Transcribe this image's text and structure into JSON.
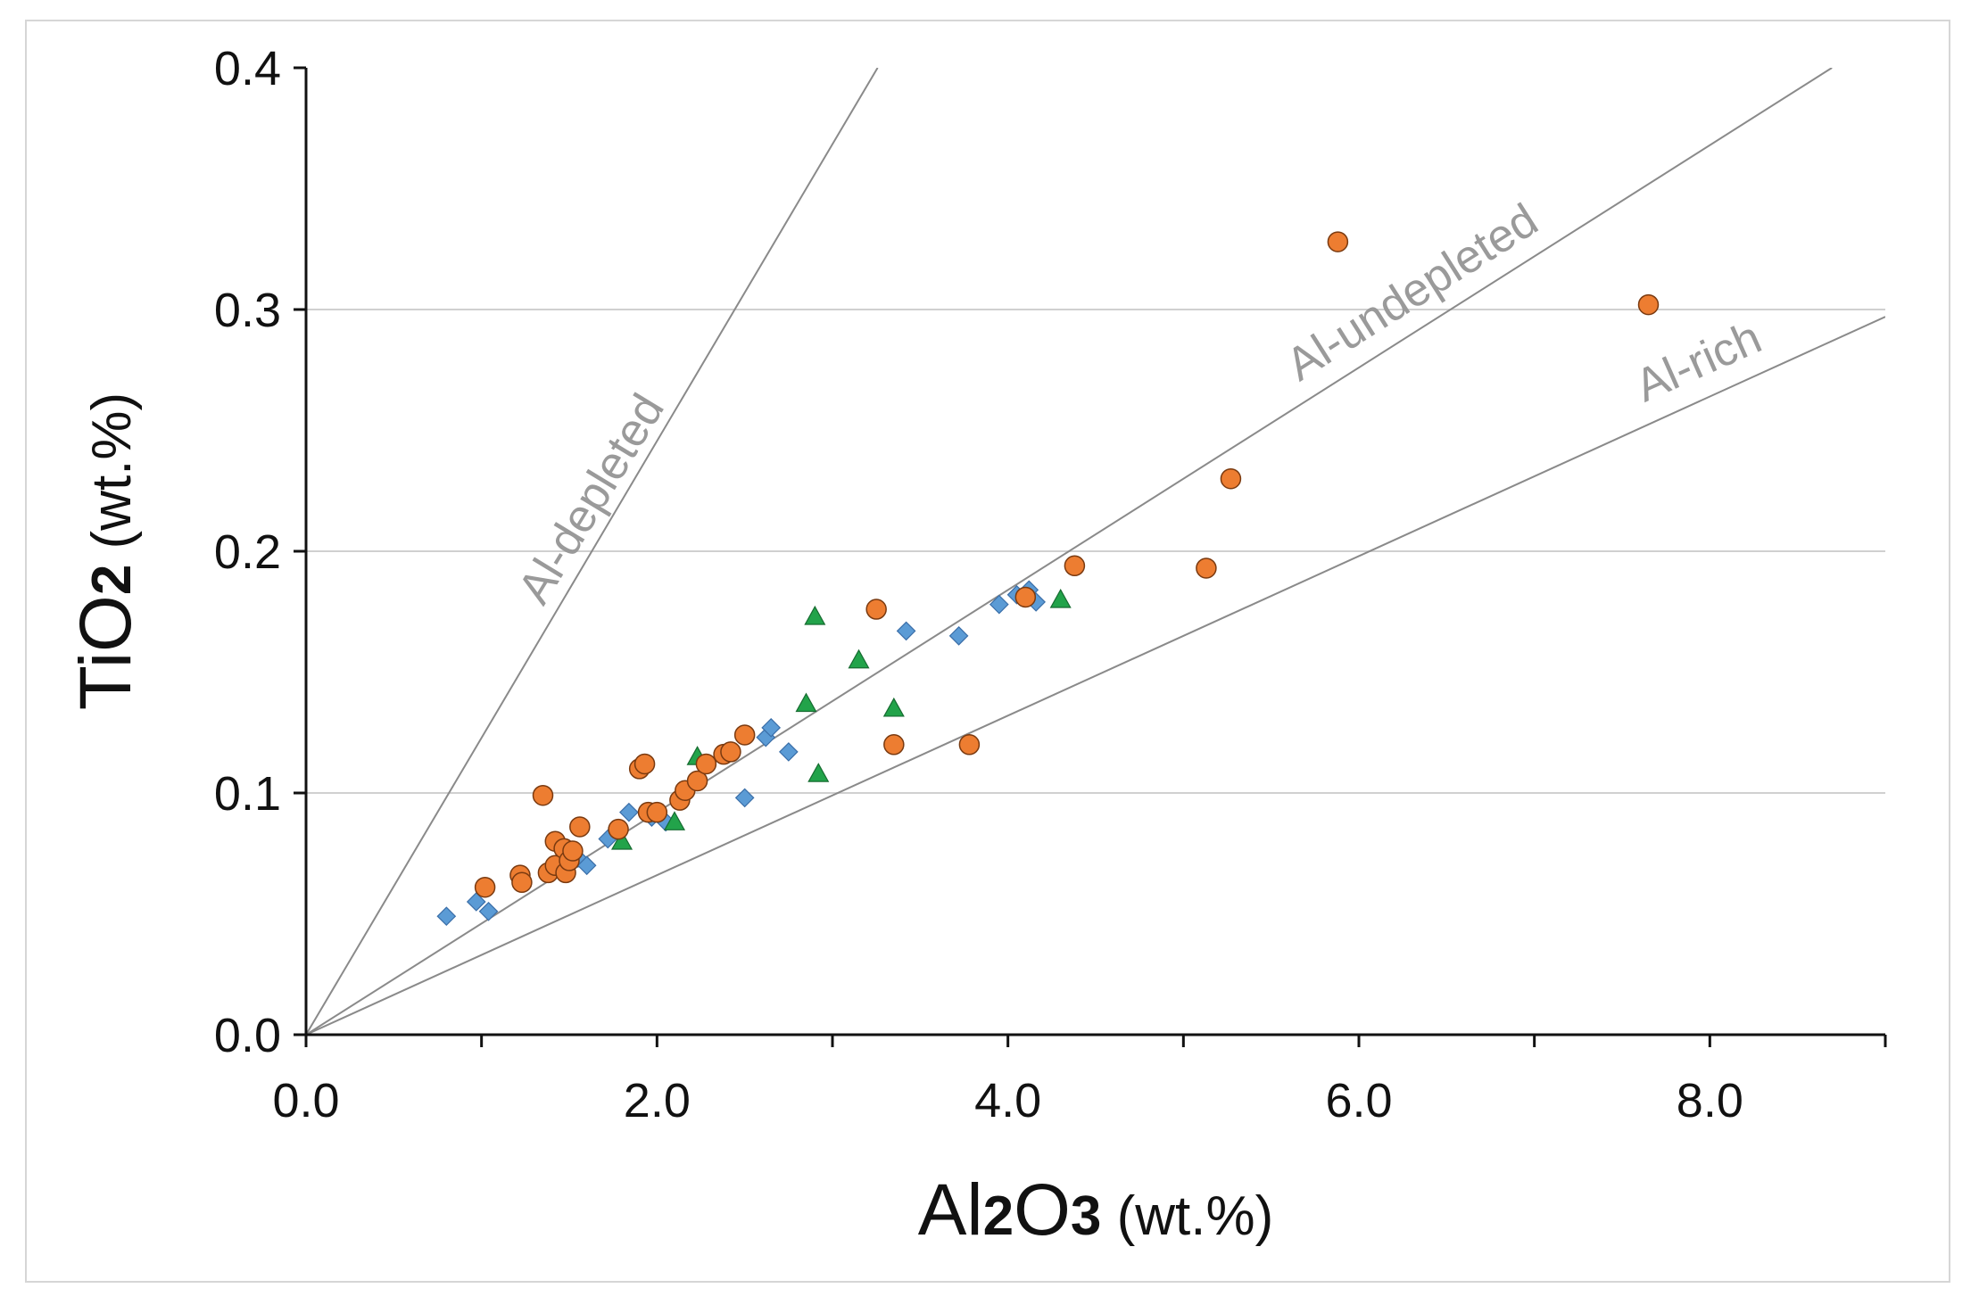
{
  "chart_data": {
    "type": "scatter",
    "title": "",
    "xlabel": {
      "base": "Al",
      "sub1": "2",
      "mid": "O",
      "sub2": "3",
      "unit": " (wt.%)"
    },
    "ylabel": {
      "base": "TiO",
      "sub": "2",
      "unit": " (wt.%)"
    },
    "xlim": [
      0,
      9
    ],
    "ylim": [
      0,
      0.4
    ],
    "x_ticks": [
      0,
      1,
      2,
      3,
      4,
      5,
      6,
      7,
      8,
      9
    ],
    "x_tick_labels": [
      {
        "value": 0,
        "label": "0.0"
      },
      {
        "value": 2,
        "label": "2.0"
      },
      {
        "value": 4,
        "label": "4.0"
      },
      {
        "value": 6,
        "label": "6.0"
      },
      {
        "value": 8,
        "label": "8.0"
      }
    ],
    "y_ticks": [
      {
        "value": 0,
        "label": "0.0"
      },
      {
        "value": 0.1,
        "label": "0.1"
      },
      {
        "value": 0.2,
        "label": "0.2"
      },
      {
        "value": 0.3,
        "label": "0.3"
      },
      {
        "value": 0.4,
        "label": "0.4"
      }
    ],
    "gridlines_y": [
      0.1,
      0.2,
      0.3
    ],
    "reference_lines": [
      {
        "label": "Al-depleted",
        "slope": 0.1228
      },
      {
        "label": "Al-undepleted",
        "slope": 0.046
      },
      {
        "label": "Al-rich",
        "slope": 0.033
      }
    ],
    "series": [
      {
        "name": "blue diamonds",
        "marker": "diamond",
        "color": "#5b9bd5",
        "points": [
          [
            0.8,
            0.049
          ],
          [
            0.97,
            0.055
          ],
          [
            1.04,
            0.051
          ],
          [
            1.38,
            0.068
          ],
          [
            1.45,
            0.072
          ],
          [
            1.55,
            0.073
          ],
          [
            1.6,
            0.07
          ],
          [
            1.72,
            0.081
          ],
          [
            1.84,
            0.092
          ],
          [
            1.97,
            0.09
          ],
          [
            2.05,
            0.088
          ],
          [
            2.5,
            0.098
          ],
          [
            2.62,
            0.123
          ],
          [
            2.65,
            0.127
          ],
          [
            2.75,
            0.117
          ],
          [
            3.42,
            0.167
          ],
          [
            3.72,
            0.165
          ],
          [
            3.95,
            0.178
          ],
          [
            4.05,
            0.182
          ],
          [
            4.12,
            0.184
          ],
          [
            4.16,
            0.179
          ]
        ]
      },
      {
        "name": "green triangles",
        "marker": "triangle",
        "color": "#22a34a",
        "points": [
          [
            1.8,
            0.08
          ],
          [
            2.1,
            0.088
          ],
          [
            2.23,
            0.115
          ],
          [
            2.85,
            0.137
          ],
          [
            2.9,
            0.173
          ],
          [
            2.92,
            0.108
          ],
          [
            3.15,
            0.155
          ],
          [
            3.35,
            0.135
          ],
          [
            4.3,
            0.18
          ]
        ]
      },
      {
        "name": "orange circles",
        "marker": "circle",
        "color": "#ed7d31",
        "points": [
          [
            1.02,
            0.061
          ],
          [
            1.22,
            0.066
          ],
          [
            1.23,
            0.063
          ],
          [
            1.35,
            0.099
          ],
          [
            1.38,
            0.067
          ],
          [
            1.42,
            0.08
          ],
          [
            1.42,
            0.07
          ],
          [
            1.47,
            0.077
          ],
          [
            1.48,
            0.067
          ],
          [
            1.5,
            0.072
          ],
          [
            1.52,
            0.076
          ],
          [
            1.56,
            0.086
          ],
          [
            1.78,
            0.085
          ],
          [
            1.9,
            0.11
          ],
          [
            1.93,
            0.112
          ],
          [
            1.95,
            0.092
          ],
          [
            2.0,
            0.092
          ],
          [
            2.13,
            0.097
          ],
          [
            2.16,
            0.101
          ],
          [
            2.23,
            0.105
          ],
          [
            2.28,
            0.112
          ],
          [
            2.38,
            0.116
          ],
          [
            2.42,
            0.117
          ],
          [
            2.5,
            0.124
          ],
          [
            3.25,
            0.176
          ],
          [
            3.35,
            0.12
          ],
          [
            3.78,
            0.12
          ],
          [
            4.1,
            0.181
          ],
          [
            4.38,
            0.194
          ],
          [
            5.13,
            0.193
          ],
          [
            5.27,
            0.23
          ],
          [
            5.88,
            0.328
          ],
          [
            7.65,
            0.302
          ]
        ]
      }
    ]
  }
}
